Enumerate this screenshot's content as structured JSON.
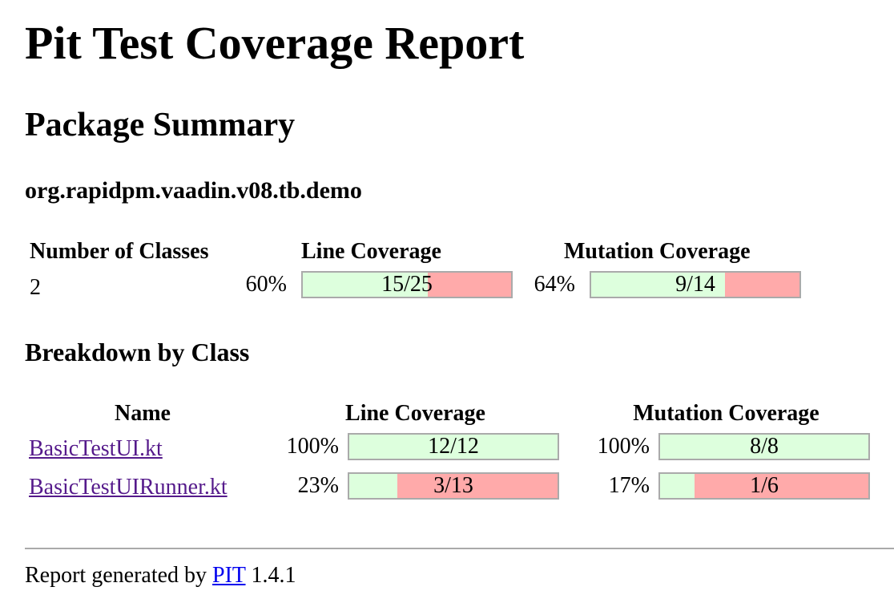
{
  "page": {
    "title": "Pit Test Coverage Report",
    "subtitle": "Package Summary",
    "package_name": "org.rapidpm.vaadin.v08.tb.demo"
  },
  "summary": {
    "headers": {
      "classes": "Number of Classes",
      "line": "Line Coverage",
      "mutation": "Mutation Coverage"
    },
    "classes_count": "2",
    "line": {
      "percent": "60%",
      "label": "15/25",
      "covered": 15,
      "total": 25
    },
    "mutation": {
      "percent": "64%",
      "label": "9/14",
      "covered": 9,
      "total": 14
    }
  },
  "breakdown": {
    "heading": "Breakdown by Class",
    "headers": {
      "name": "Name",
      "line": "Line Coverage",
      "mutation": "Mutation Coverage"
    },
    "rows": [
      {
        "name": "BasicTestUI.kt",
        "line": {
          "percent": "100%",
          "label": "12/12",
          "covered": 12,
          "total": 12
        },
        "mutation": {
          "percent": "100%",
          "label": "8/8",
          "covered": 8,
          "total": 8
        }
      },
      {
        "name": "BasicTestUIRunner.kt",
        "line": {
          "percent": "23%",
          "label": "3/13",
          "covered": 3,
          "total": 13
        },
        "mutation": {
          "percent": "17%",
          "label": "1/6",
          "covered": 1,
          "total": 6
        }
      }
    ]
  },
  "footer": {
    "prefix": "Report generated by",
    "link": "PIT",
    "version": "1.4.1"
  },
  "colors": {
    "covered": "#ddffdd",
    "uncovered": "#ffaaaa",
    "bar_border": "#aaaaaa",
    "visited_link": "#551a8b",
    "link": "#0000ee"
  }
}
